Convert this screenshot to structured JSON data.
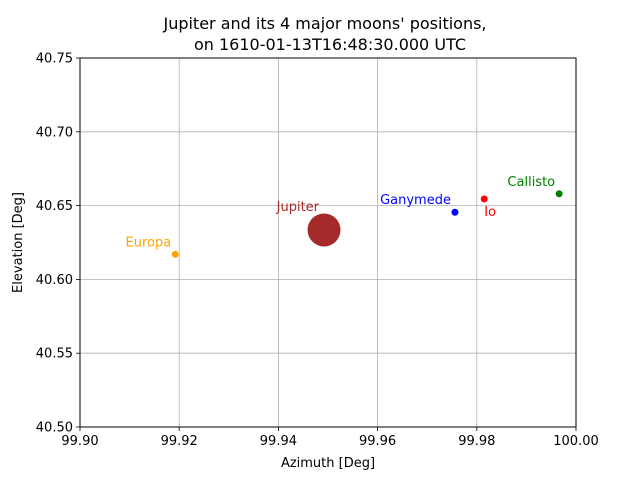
{
  "chart_data": {
    "type": "scatter",
    "title_line1": "Jupiter and its 4 major moons' positions,",
    "title_line2": "on 1610-01-13T16:48:30.000 UTC",
    "xlabel": "Azimuth [Deg]",
    "ylabel": "Elevation [Deg]",
    "xlim": [
      99.9,
      100.0
    ],
    "ylim": [
      40.5,
      40.75
    ],
    "xticks": [
      "99.90",
      "99.92",
      "99.94",
      "99.96",
      "99.98",
      "100.00"
    ],
    "yticks": [
      "40.50",
      "40.55",
      "40.60",
      "40.65",
      "40.70",
      "40.75"
    ],
    "grid": true,
    "points": [
      {
        "name": "Jupiter",
        "x": 99.9492,
        "y": 40.6335,
        "color": "#a52a2a",
        "size": "large",
        "label_pos": "upper-left"
      },
      {
        "name": "Io",
        "x": 99.9815,
        "y": 40.6545,
        "color": "#ff0000",
        "size": "small",
        "label_pos": "lower-right"
      },
      {
        "name": "Europa",
        "x": 99.9192,
        "y": 40.617,
        "color": "#ffa500",
        "size": "small",
        "label_pos": "upper-left"
      },
      {
        "name": "Ganymede",
        "x": 99.9756,
        "y": 40.6455,
        "color": "#0000ff",
        "size": "small",
        "label_pos": "upper-left"
      },
      {
        "name": "Callisto",
        "x": 99.9966,
        "y": 40.658,
        "color": "#008000",
        "size": "small",
        "label_pos": "upper-left"
      }
    ]
  }
}
